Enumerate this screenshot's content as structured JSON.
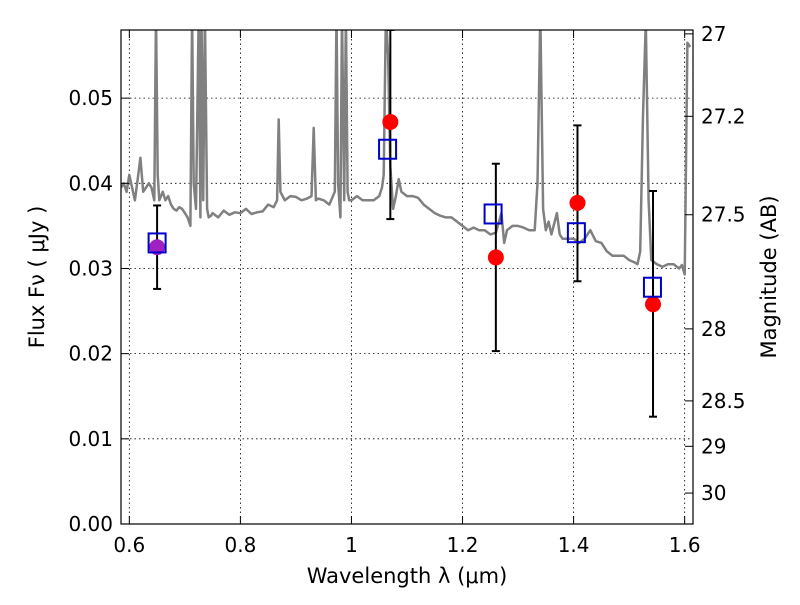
{
  "chart_data": {
    "type": "scatter",
    "xlabel": "Wavelength  λ (μm)",
    "ylabel": "Flux  Fν  ( μJy )",
    "y2label": "Magnitude (AB)",
    "xlim": [
      0.585,
      1.615
    ],
    "ylim": [
      0.0,
      0.058
    ],
    "grid": true,
    "x_ticks": [
      0.6,
      0.8,
      1.0,
      1.2,
      1.4,
      1.6
    ],
    "x_tick_labels": [
      "0.6",
      "0.8",
      "1",
      "1.2",
      "1.4",
      "1.6"
    ],
    "y_ticks": [
      0.0,
      0.01,
      0.02,
      0.03,
      0.04,
      0.05
    ],
    "y_tick_labels": [
      "0.00",
      "0.01",
      "0.02",
      "0.03",
      "0.04",
      "0.05"
    ],
    "mag_ticks": [
      27,
      27.2,
      27.5,
      28,
      28.5,
      29,
      30
    ],
    "mag_tick_labels": [
      "27",
      "27.2",
      "27.5",
      "28",
      "28.5",
      "29",
      "30"
    ],
    "series": [
      {
        "kind": "template-spectrum",
        "color": "#808080",
        "x": [
          0.585,
          0.59,
          0.595,
          0.6,
          0.605,
          0.61,
          0.615,
          0.62,
          0.625,
          0.63,
          0.635,
          0.64,
          0.645,
          0.648,
          0.651,
          0.654,
          0.66,
          0.665,
          0.67,
          0.675,
          0.68,
          0.685,
          0.69,
          0.695,
          0.7,
          0.705,
          0.71,
          0.713,
          0.716,
          0.72,
          0.725,
          0.728,
          0.73,
          0.733,
          0.736,
          0.74,
          0.743,
          0.747,
          0.75,
          0.76,
          0.77,
          0.78,
          0.79,
          0.8,
          0.81,
          0.82,
          0.83,
          0.84,
          0.85,
          0.86,
          0.866,
          0.869,
          0.872,
          0.88,
          0.89,
          0.9,
          0.91,
          0.92,
          0.928,
          0.932,
          0.936,
          0.94,
          0.95,
          0.96,
          0.97,
          0.973,
          0.976,
          0.98,
          0.983,
          0.987,
          0.99,
          0.993,
          0.996,
          1.0,
          1.01,
          1.02,
          1.03,
          1.04,
          1.05,
          1.055,
          1.058,
          1.062,
          1.066,
          1.07,
          1.075,
          1.08,
          1.085,
          1.09,
          1.1,
          1.11,
          1.12,
          1.13,
          1.14,
          1.15,
          1.16,
          1.17,
          1.18,
          1.19,
          1.2,
          1.21,
          1.22,
          1.23,
          1.24,
          1.25,
          1.26,
          1.27,
          1.275,
          1.28,
          1.29,
          1.3,
          1.31,
          1.32,
          1.33,
          1.335,
          1.34,
          1.345,
          1.35,
          1.355,
          1.36,
          1.37,
          1.375,
          1.38,
          1.39,
          1.4,
          1.41,
          1.42,
          1.43,
          1.44,
          1.45,
          1.46,
          1.47,
          1.48,
          1.49,
          1.5,
          1.51,
          1.515,
          1.52,
          1.525,
          1.53,
          1.535,
          1.54,
          1.55,
          1.56,
          1.57,
          1.58,
          1.59,
          1.595,
          1.6,
          1.605,
          1.61
        ],
        "y": [
          0.0395,
          0.04,
          0.039,
          0.041,
          0.0395,
          0.038,
          0.0405,
          0.043,
          0.039,
          0.0395,
          0.04,
          0.0395,
          0.038,
          0.06,
          0.041,
          0.038,
          0.039,
          0.038,
          0.0385,
          0.0375,
          0.037,
          0.0368,
          0.0372,
          0.037,
          0.0365,
          0.036,
          0.035,
          0.06,
          0.04,
          0.037,
          0.06,
          0.036,
          0.06,
          0.038,
          0.06,
          0.037,
          0.036,
          0.0362,
          0.0365,
          0.036,
          0.0368,
          0.0363,
          0.0366,
          0.0365,
          0.037,
          0.0364,
          0.0366,
          0.0367,
          0.0375,
          0.0372,
          0.038,
          0.0475,
          0.039,
          0.038,
          0.0385,
          0.0384,
          0.038,
          0.0382,
          0.0385,
          0.0465,
          0.038,
          0.0382,
          0.038,
          0.0375,
          0.039,
          0.06,
          0.04,
          0.036,
          0.06,
          0.038,
          0.06,
          0.039,
          0.038,
          0.038,
          0.0385,
          0.038,
          0.038,
          0.038,
          0.0385,
          0.0395,
          0.041,
          0.06,
          0.055,
          0.042,
          0.037,
          0.0385,
          0.0405,
          0.039,
          0.0385,
          0.0385,
          0.0383,
          0.0375,
          0.037,
          0.0365,
          0.0362,
          0.036,
          0.036,
          0.0355,
          0.035,
          0.0345,
          0.0348,
          0.0345,
          0.0345,
          0.034,
          0.0342,
          0.0365,
          0.033,
          0.0345,
          0.035,
          0.035,
          0.0348,
          0.0345,
          0.0345,
          0.04,
          0.06,
          0.037,
          0.0345,
          0.0355,
          0.034,
          0.0365,
          0.034,
          0.0335,
          0.0335,
          0.0335,
          0.033,
          0.0335,
          0.0345,
          0.0332,
          0.033,
          0.032,
          0.0315,
          0.0315,
          0.0315,
          0.031,
          0.0307,
          0.0305,
          0.032,
          0.048,
          0.059,
          0.038,
          0.031,
          0.0305,
          0.0302,
          0.0305,
          0.0305,
          0.03,
          0.0304,
          0.0293,
          0.0565,
          0.056
        ]
      },
      {
        "kind": "model-photometry",
        "marker": "open-square",
        "color": "#0000cc",
        "x": [
          0.65,
          1.065,
          1.255,
          1.405,
          1.542
        ],
        "y": [
          0.033,
          0.044,
          0.0364,
          0.0342,
          0.0278
        ]
      },
      {
        "kind": "observed-photometry",
        "marker": "filled-circle",
        "color": "#ff0000",
        "highlight_color": "#a020c0",
        "highlight_index": 0,
        "x": [
          0.65,
          1.07,
          1.26,
          1.407,
          1.543
        ],
        "y": [
          0.0325,
          0.0472,
          0.0313,
          0.0377,
          0.0258
        ],
        "yerr_low": [
          0.0276,
          0.0358,
          0.0203,
          0.0285,
          0.0126
        ],
        "yerr_high": [
          0.0374,
          0.058,
          0.0423,
          0.0468,
          0.0391
        ]
      }
    ]
  }
}
